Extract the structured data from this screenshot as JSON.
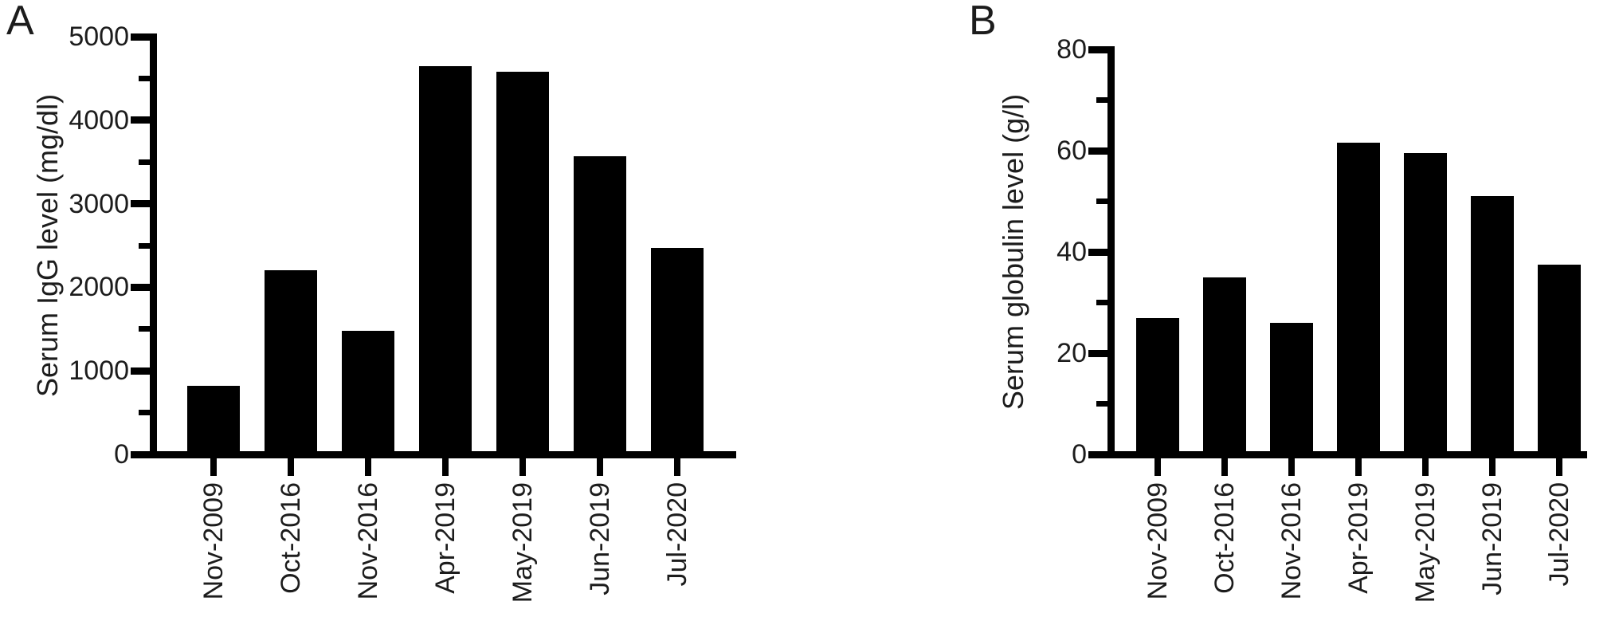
{
  "figure": {
    "background": "#ffffff",
    "bar_color": "#000000",
    "axis_color": "#000000",
    "text_color": "#1c1c1c"
  },
  "chart_data": [
    {
      "type": "bar",
      "panel_label": "A",
      "title": "",
      "xlabel": "",
      "ylabel": "Serum IgG level (mg/dl)",
      "categories": [
        "Nov-2009",
        "Oct-2016",
        "Nov-2016",
        "Apr-2019",
        "May-2019",
        "Jun-2019",
        "Jul-2020"
      ],
      "values": [
        820,
        2200,
        1480,
        4650,
        4580,
        3570,
        2470
      ],
      "ylim": [
        0,
        5000
      ],
      "yticks": [
        0,
        1000,
        2000,
        3000,
        4000,
        5000
      ],
      "ytick_minor_step": 500,
      "grid": false,
      "legend_position": "none",
      "bar_orientation": "vertical",
      "x_label_rotation_deg": 90
    },
    {
      "type": "bar",
      "panel_label": "B",
      "title": "",
      "xlabel": "",
      "ylabel": "Serum globulin level (g/l)",
      "categories": [
        "Nov-2009",
        "Oct-2016",
        "Nov-2016",
        "Apr-2019",
        "May-2019",
        "Jun-2019",
        "Jul-2020"
      ],
      "values": [
        27,
        35,
        26,
        61.5,
        59.5,
        51,
        37.5
      ],
      "ylim": [
        0,
        80
      ],
      "yticks": [
        0,
        20,
        40,
        60,
        80
      ],
      "ytick_minor_step": 10,
      "grid": false,
      "legend_position": "none",
      "bar_orientation": "vertical",
      "x_label_rotation_deg": 90
    }
  ]
}
